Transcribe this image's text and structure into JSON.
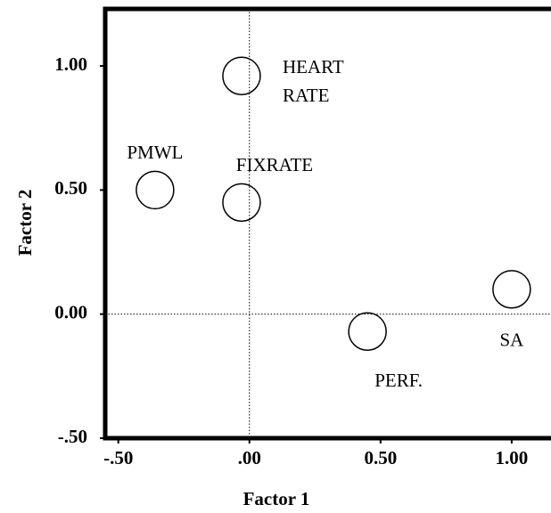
{
  "chart_data": {
    "type": "scatter",
    "xlabel": "Factor 1",
    "ylabel": "Factor 2",
    "labels": [
      "HEART RATE",
      "PMWL",
      "FIXRATE",
      "PERF.",
      "SA"
    ],
    "x": [
      -0.03,
      -0.36,
      -0.03,
      0.45,
      1.0
    ],
    "y": [
      0.96,
      0.5,
      0.45,
      -0.07,
      0.1
    ],
    "xlim": [
      -0.55,
      1.15
    ],
    "ylim": [
      -0.5,
      1.23
    ],
    "xticks": [
      {
        "value": -0.5,
        "label": "-.50"
      },
      {
        "value": 0,
        "label": ".00"
      },
      {
        "value": 0.5,
        "label": "0.50"
      },
      {
        "value": 1,
        "label": "1.00"
      }
    ],
    "yticks": [
      {
        "value": -0.5,
        "label": "-.50"
      },
      {
        "value": 0,
        "label": "0.00"
      },
      {
        "value": 0.5,
        "label": "0.50"
      },
      {
        "value": 1,
        "label": "1.00"
      }
    ],
    "color": "#000000"
  }
}
